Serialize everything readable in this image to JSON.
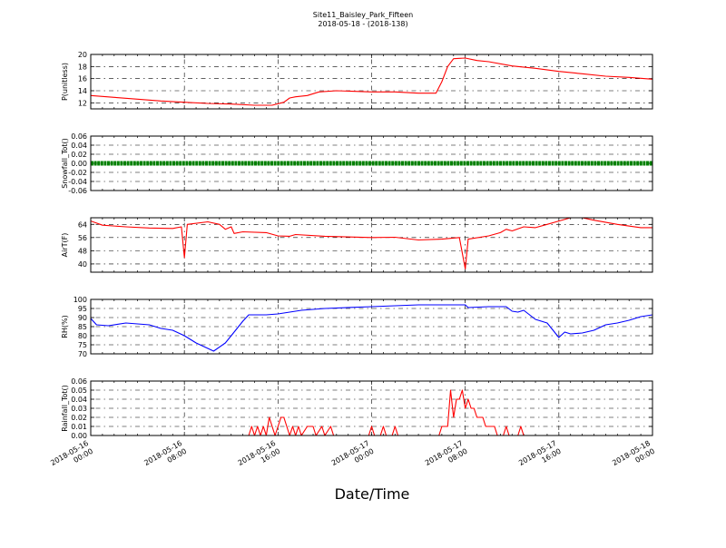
{
  "title": [
    "Site11_Baisley_Park_Fifteen",
    "2018-05-18 - (2018-138)"
  ],
  "xlabel": "Date/Time",
  "chart_data": {
    "type": "line",
    "x_range": [
      "2018-05-16 00:00",
      "2018-05-18 00:00"
    ],
    "x_ticks": [
      {
        "time": "2018-05-16 00:00",
        "lines": [
          "2018-05-16",
          "00:00"
        ]
      },
      {
        "time": "2018-05-16 08:00",
        "lines": [
          "2018-05-16",
          "08:00"
        ]
      },
      {
        "time": "2018-05-16 16:00",
        "lines": [
          "2018-05-16",
          "16:00"
        ]
      },
      {
        "time": "2018-05-17 00:00",
        "lines": [
          "2018-05-17",
          "00:00"
        ]
      },
      {
        "time": "2018-05-17 08:00",
        "lines": [
          "2018-05-17",
          "08:00"
        ]
      },
      {
        "time": "2018-05-17 16:00",
        "lines": [
          "2018-05-17",
          "16:00"
        ]
      },
      {
        "time": "2018-05-18 00:00",
        "lines": [
          "2018-05-18",
          "00:00"
        ]
      }
    ],
    "grid": true,
    "panels": [
      {
        "ylabel": "P(unitless)",
        "color": "#ff0000",
        "ylim": [
          11,
          20
        ],
        "yticks": [
          "12",
          "14",
          "16",
          "18",
          "20"
        ],
        "ytick_values": [
          12,
          14,
          16,
          18,
          20
        ],
        "marker": "line",
        "points": [
          [
            "2018-05-16 00:00",
            13.2
          ],
          [
            "2018-05-16 02:00",
            12.9
          ],
          [
            "2018-05-16 04:00",
            12.6
          ],
          [
            "2018-05-16 06:00",
            12.3
          ],
          [
            "2018-05-16 08:00",
            12.1
          ],
          [
            "2018-05-16 10:00",
            11.9
          ],
          [
            "2018-05-16 12:00",
            11.8
          ],
          [
            "2018-05-16 14:00",
            11.6
          ],
          [
            "2018-05-16 15:30",
            11.6
          ],
          [
            "2018-05-16 16:30",
            12.1
          ],
          [
            "2018-05-16 17:00",
            12.8
          ],
          [
            "2018-05-16 17:30",
            13.0
          ],
          [
            "2018-05-16 18:30",
            13.2
          ],
          [
            "2018-05-16 19:30",
            13.8
          ],
          [
            "2018-05-16 21:00",
            14.0
          ],
          [
            "2018-05-17 00:00",
            13.8
          ],
          [
            "2018-05-17 02:00",
            13.8
          ],
          [
            "2018-05-17 04:00",
            13.6
          ],
          [
            "2018-05-17 05:30",
            13.6
          ],
          [
            "2018-05-17 06:00",
            15.5
          ],
          [
            "2018-05-17 06:30",
            18.0
          ],
          [
            "2018-05-17 07:00",
            19.3
          ],
          [
            "2018-05-17 08:00",
            19.4
          ],
          [
            "2018-05-17 09:00",
            19.0
          ],
          [
            "2018-05-17 10:00",
            18.8
          ],
          [
            "2018-05-17 12:00",
            18.1
          ],
          [
            "2018-05-17 14:00",
            17.7
          ],
          [
            "2018-05-17 16:00",
            17.2
          ],
          [
            "2018-05-17 18:00",
            16.8
          ],
          [
            "2018-05-17 20:00",
            16.4
          ],
          [
            "2018-05-17 22:00",
            16.2
          ],
          [
            "2018-05-18 00:00",
            15.9
          ]
        ]
      },
      {
        "ylabel": "Snowfall_Tot()",
        "color": "#008000",
        "ylim": [
          -0.06,
          0.06
        ],
        "yticks": [
          "-0.06",
          "-0.04",
          "-0.02",
          "0.00",
          "0.02",
          "0.04",
          "0.06"
        ],
        "ytick_values": [
          -0.06,
          -0.04,
          -0.02,
          0.0,
          0.02,
          0.04,
          0.06
        ],
        "marker": "dots",
        "points": [
          [
            "2018-05-16 00:00",
            0.0
          ],
          [
            "2018-05-18 00:00",
            0.0
          ]
        ]
      },
      {
        "ylabel": "AirT(F)",
        "color": "#ff0000",
        "ylim": [
          35,
          68
        ],
        "yticks": [
          "40",
          "48",
          "56",
          "64"
        ],
        "ytick_values": [
          40,
          48,
          56,
          64
        ],
        "marker": "line",
        "points": [
          [
            "2018-05-16 00:00",
            66.0
          ],
          [
            "2018-05-16 01:00",
            63.5
          ],
          [
            "2018-05-16 03:00",
            62.5
          ],
          [
            "2018-05-16 05:00",
            61.8
          ],
          [
            "2018-05-16 07:00",
            61.5
          ],
          [
            "2018-05-16 07:45",
            62.5
          ],
          [
            "2018-05-16 08:00",
            43.8
          ],
          [
            "2018-05-16 08:15",
            64.0
          ],
          [
            "2018-05-16 10:00",
            65.5
          ],
          [
            "2018-05-16 11:00",
            64.0
          ],
          [
            "2018-05-16 11:30",
            61.0
          ],
          [
            "2018-05-16 12:00",
            62.5
          ],
          [
            "2018-05-16 12:15",
            58.5
          ],
          [
            "2018-05-16 13:00",
            59.5
          ],
          [
            "2018-05-16 15:00",
            59.0
          ],
          [
            "2018-05-16 16:00",
            57.0
          ],
          [
            "2018-05-16 17:00",
            56.8
          ],
          [
            "2018-05-16 17:30",
            57.8
          ],
          [
            "2018-05-16 20:00",
            56.8
          ],
          [
            "2018-05-17 00:00",
            56.0
          ],
          [
            "2018-05-17 02:00",
            56.2
          ],
          [
            "2018-05-17 04:00",
            54.5
          ],
          [
            "2018-05-17 06:00",
            55.0
          ],
          [
            "2018-05-17 07:30",
            56.0
          ],
          [
            "2018-05-17 08:00",
            37.0
          ],
          [
            "2018-05-17 08:15",
            55.0
          ],
          [
            "2018-05-17 10:00",
            57.0
          ],
          [
            "2018-05-17 11:00",
            59.0
          ],
          [
            "2018-05-17 11:30",
            61.0
          ],
          [
            "2018-05-17 12:00",
            60.0
          ],
          [
            "2018-05-17 13:00",
            62.5
          ],
          [
            "2018-05-17 14:00",
            62.0
          ],
          [
            "2018-05-17 15:00",
            64.0
          ],
          [
            "2018-05-17 16:00",
            66.0
          ],
          [
            "2018-05-17 17:00",
            68.0
          ],
          [
            "2018-05-17 18:00",
            68.0
          ],
          [
            "2018-05-17 19:00",
            66.5
          ],
          [
            "2018-05-17 21:00",
            64.0
          ],
          [
            "2018-05-17 23:00",
            62.0
          ],
          [
            "2018-05-18 00:00",
            62.0
          ]
        ]
      },
      {
        "ylabel": "RH(%)",
        "color": "#0000ff",
        "ylim": [
          70,
          100
        ],
        "yticks": [
          "70",
          "75",
          "80",
          "85",
          "90",
          "95",
          "100"
        ],
        "ytick_values": [
          70,
          75,
          80,
          85,
          90,
          95,
          100
        ],
        "marker": "line",
        "points": [
          [
            "2018-05-16 00:00",
            89.5
          ],
          [
            "2018-05-16 00:30",
            86.0
          ],
          [
            "2018-05-16 01:30",
            85.5
          ],
          [
            "2018-05-16 03:00",
            87.0
          ],
          [
            "2018-05-16 05:00",
            86.0
          ],
          [
            "2018-05-16 06:00",
            84.0
          ],
          [
            "2018-05-16 07:00",
            83.0
          ],
          [
            "2018-05-16 08:00",
            80.0
          ],
          [
            "2018-05-16 09:00",
            76.0
          ],
          [
            "2018-05-16 10:00",
            73.0
          ],
          [
            "2018-05-16 10:30",
            71.5
          ],
          [
            "2018-05-16 11:30",
            76.0
          ],
          [
            "2018-05-16 12:00",
            80.0
          ],
          [
            "2018-05-16 13:00",
            88.0
          ],
          [
            "2018-05-16 13:30",
            91.5
          ],
          [
            "2018-05-16 15:00",
            91.5
          ],
          [
            "2018-05-16 16:00",
            92.0
          ],
          [
            "2018-05-16 17:00",
            93.0
          ],
          [
            "2018-05-16 18:00",
            94.0
          ],
          [
            "2018-05-16 20:00",
            95.0
          ],
          [
            "2018-05-17 00:00",
            96.0
          ],
          [
            "2018-05-17 04:00",
            97.0
          ],
          [
            "2018-05-17 08:00",
            97.0
          ],
          [
            "2018-05-17 08:15",
            95.5
          ],
          [
            "2018-05-17 10:00",
            96.0
          ],
          [
            "2018-05-17 11:30",
            96.0
          ],
          [
            "2018-05-17 12:00",
            93.5
          ],
          [
            "2018-05-17 12:30",
            93.0
          ],
          [
            "2018-05-17 13:00",
            94.0
          ],
          [
            "2018-05-17 14:00",
            89.0
          ],
          [
            "2018-05-17 15:00",
            87.0
          ],
          [
            "2018-05-17 15:30",
            83.0
          ],
          [
            "2018-05-17 16:00",
            79.0
          ],
          [
            "2018-05-17 16:30",
            82.0
          ],
          [
            "2018-05-17 17:00",
            81.0
          ],
          [
            "2018-05-17 18:00",
            81.5
          ],
          [
            "2018-05-17 19:00",
            83.0
          ],
          [
            "2018-05-17 20:00",
            86.0
          ],
          [
            "2018-05-17 21:00",
            87.0
          ],
          [
            "2018-05-17 22:00",
            88.5
          ],
          [
            "2018-05-17 23:00",
            90.5
          ],
          [
            "2018-05-18 00:00",
            91.5
          ]
        ]
      },
      {
        "ylabel": "Rainfall_Tot()",
        "color": "#ff0000",
        "ylim": [
          0,
          0.06
        ],
        "yticks": [
          "0.00",
          "0.01",
          "0.02",
          "0.03",
          "0.04",
          "0.05",
          "0.06"
        ],
        "ytick_values": [
          0.0,
          0.01,
          0.02,
          0.03,
          0.04,
          0.05,
          0.06
        ],
        "marker": "line",
        "points": [
          [
            "2018-05-16 00:00",
            0.0
          ],
          [
            "2018-05-16 13:30",
            0.0
          ],
          [
            "2018-05-16 13:45",
            0.01
          ],
          [
            "2018-05-16 14:00",
            0.0
          ],
          [
            "2018-05-16 14:15",
            0.01
          ],
          [
            "2018-05-16 14:30",
            0.0
          ],
          [
            "2018-05-16 14:45",
            0.01
          ],
          [
            "2018-05-16 15:00",
            0.0
          ],
          [
            "2018-05-16 15:15",
            0.02
          ],
          [
            "2018-05-16 15:45",
            0.0
          ],
          [
            "2018-05-16 16:15",
            0.02
          ],
          [
            "2018-05-16 16:30",
            0.02
          ],
          [
            "2018-05-16 17:00",
            0.0
          ],
          [
            "2018-05-16 17:15",
            0.01
          ],
          [
            "2018-05-16 17:30",
            0.0
          ],
          [
            "2018-05-16 17:45",
            0.01
          ],
          [
            "2018-05-16 18:00",
            0.0
          ],
          [
            "2018-05-16 18:30",
            0.01
          ],
          [
            "2018-05-16 19:00",
            0.01
          ],
          [
            "2018-05-16 19:15",
            0.0
          ],
          [
            "2018-05-16 19:45",
            0.01
          ],
          [
            "2018-05-16 20:00",
            0.0
          ],
          [
            "2018-05-16 20:30",
            0.01
          ],
          [
            "2018-05-16 20:45",
            0.0
          ],
          [
            "2018-05-16 23:45",
            0.0
          ],
          [
            "2018-05-17 00:00",
            0.01
          ],
          [
            "2018-05-17 00:15",
            0.0
          ],
          [
            "2018-05-17 00:45",
            0.0
          ],
          [
            "2018-05-17 01:00",
            0.01
          ],
          [
            "2018-05-17 01:15",
            0.0
          ],
          [
            "2018-05-17 01:45",
            0.0
          ],
          [
            "2018-05-17 02:00",
            0.01
          ],
          [
            "2018-05-17 02:15",
            0.0
          ],
          [
            "2018-05-17 05:45",
            0.0
          ],
          [
            "2018-05-17 06:00",
            0.01
          ],
          [
            "2018-05-17 06:30",
            0.01
          ],
          [
            "2018-05-17 06:45",
            0.05
          ],
          [
            "2018-05-17 07:00",
            0.02
          ],
          [
            "2018-05-17 07:15",
            0.04
          ],
          [
            "2018-05-17 07:30",
            0.04
          ],
          [
            "2018-05-17 07:45",
            0.05
          ],
          [
            "2018-05-17 08:00",
            0.03
          ],
          [
            "2018-05-17 08:15",
            0.04
          ],
          [
            "2018-05-17 08:30",
            0.03
          ],
          [
            "2018-05-17 08:45",
            0.03
          ],
          [
            "2018-05-17 09:00",
            0.02
          ],
          [
            "2018-05-17 09:30",
            0.02
          ],
          [
            "2018-05-17 09:45",
            0.01
          ],
          [
            "2018-05-17 10:30",
            0.01
          ],
          [
            "2018-05-17 10:45",
            0.0
          ],
          [
            "2018-05-17 11:15",
            0.0
          ],
          [
            "2018-05-17 11:30",
            0.01
          ],
          [
            "2018-05-17 11:45",
            0.0
          ],
          [
            "2018-05-17 12:30",
            0.0
          ],
          [
            "2018-05-17 12:45",
            0.01
          ],
          [
            "2018-05-17 13:00",
            0.0
          ],
          [
            "2018-05-18 00:00",
            0.0
          ]
        ]
      }
    ]
  }
}
